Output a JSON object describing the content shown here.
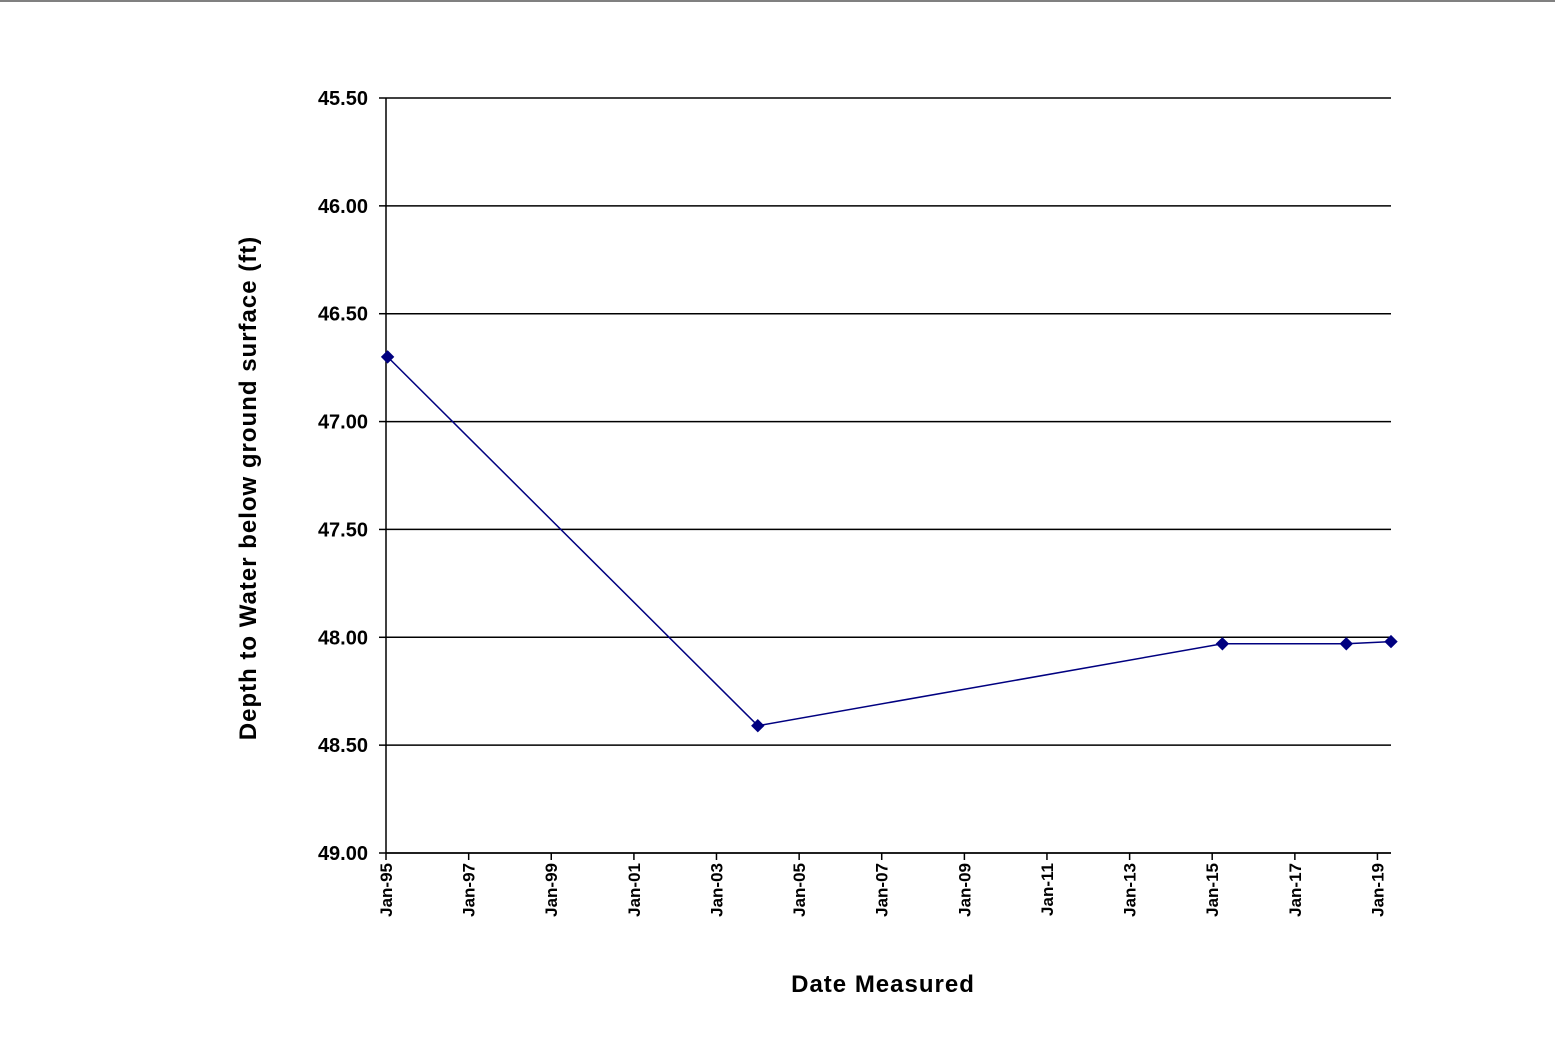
{
  "chart_data": {
    "type": "line",
    "title": "",
    "xlabel": "Date Measured",
    "ylabel": "Depth to Water below ground surface (ft)",
    "y_inverted": true,
    "ylim": [
      45.5,
      49.0
    ],
    "xlim": [
      "1995-01-01",
      "2019-05-01"
    ],
    "grid": "horizontal major gridlines",
    "legend": "none",
    "y_tick_labels": [
      "45.50",
      "46.00",
      "46.50",
      "47.00",
      "47.50",
      "48.00",
      "48.50",
      "49.00"
    ],
    "x_tick_labels": [
      "Jan-95",
      "Jan-97",
      "Jan-99",
      "Jan-01",
      "Jan-03",
      "Jan-05",
      "Jan-07",
      "Jan-09",
      "Jan-11",
      "Jan-13",
      "Jan-15",
      "Jan-17",
      "Jan-19"
    ],
    "x_tick_dates": [
      "1995-01-01",
      "1997-01-01",
      "1999-01-01",
      "2001-01-01",
      "2003-01-01",
      "2005-01-01",
      "2007-01-01",
      "2009-01-01",
      "2011-01-01",
      "2013-01-01",
      "2015-01-01",
      "2017-01-01",
      "2019-01-01"
    ],
    "series": [
      {
        "marker": "diamond",
        "color": "#000080",
        "points": [
          {
            "x": "1995-01-15",
            "y": 46.7
          },
          {
            "x": "2004-01-01",
            "y": 48.41
          },
          {
            "x": "2015-04-01",
            "y": 48.03
          },
          {
            "x": "2018-04-01",
            "y": 48.03
          },
          {
            "x": "2019-05-01",
            "y": 48.02
          }
        ]
      }
    ]
  }
}
